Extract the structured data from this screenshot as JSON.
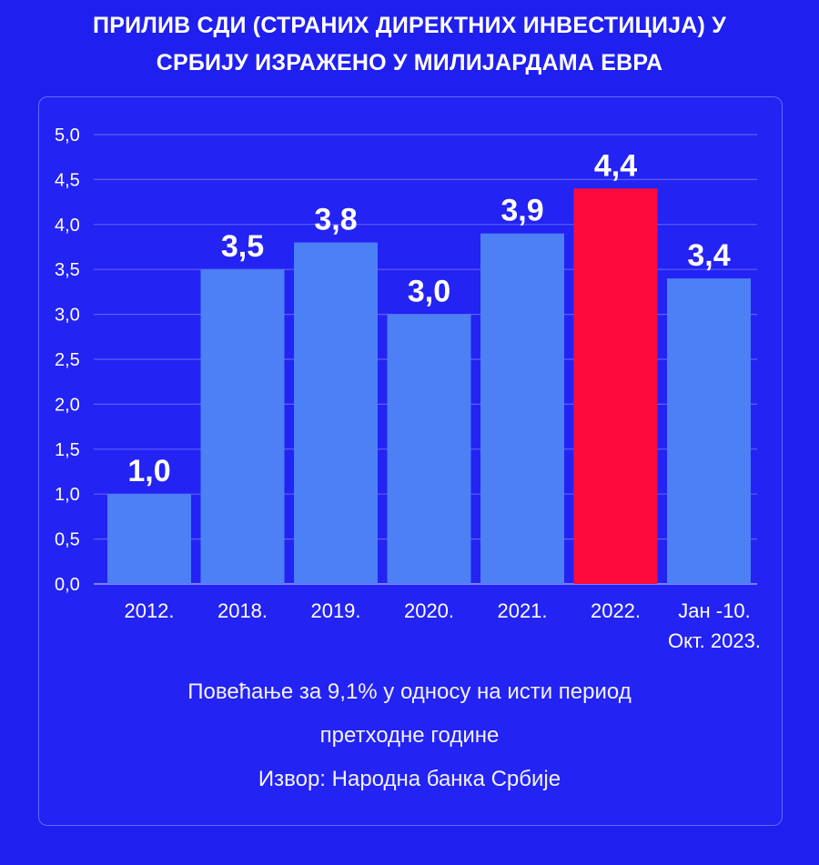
{
  "header": {
    "title_line1": "ПРИЛИВ СДИ (СТРАНИХ ДИРЕКТНИХ ИНВЕСТИЦИЈА) У",
    "title_line2": "СРБИЈУ ИЗРАЖЕНО У МИЛИЈАРДАМА ЕВРА"
  },
  "chart_data": {
    "type": "bar",
    "categories": [
      [
        "2012."
      ],
      [
        "2018."
      ],
      [
        "2019."
      ],
      [
        "2020."
      ],
      [
        "2021."
      ],
      [
        "2022."
      ],
      [
        "Јан -10.",
        "Окт. 2023."
      ]
    ],
    "values": [
      1.0,
      3.5,
      3.8,
      3.0,
      3.9,
      4.4,
      3.4
    ],
    "value_labels": [
      "1,0",
      "3,5",
      "3,8",
      "3,0",
      "3,9",
      "4,4",
      "3,4"
    ],
    "y_ticks": [
      "0,0",
      "0,5",
      "1,0",
      "1,5",
      "2,0",
      "2,5",
      "3,0",
      "3,5",
      "4,0",
      "4,5",
      "5,0"
    ],
    "ylim": [
      0,
      5
    ],
    "grid": true,
    "bar_color": "#4d7ff5",
    "highlight_color": "#ff0a3c",
    "highlight_index": 5
  },
  "footer": {
    "line1": "Повећање за 9,1% у односу на исти период",
    "line2": "претходне године",
    "line3": "Извор: Народна банка Србије"
  }
}
